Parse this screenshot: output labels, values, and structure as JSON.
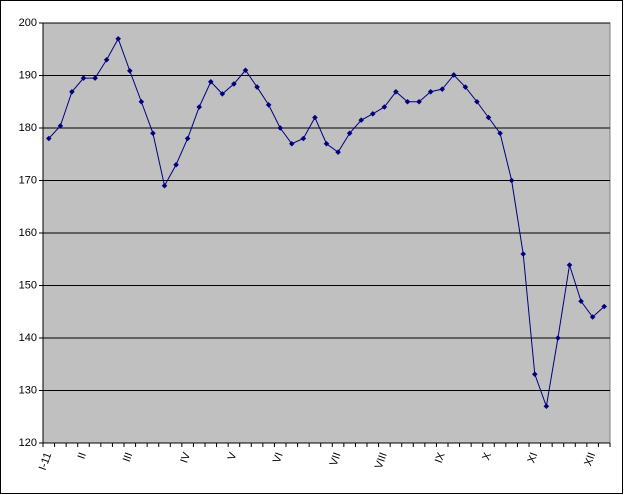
{
  "chart_data": {
    "type": "line",
    "categories": [
      "I-11",
      null,
      null,
      "II",
      null,
      null,
      null,
      "III",
      null,
      null,
      null,
      null,
      "IV",
      null,
      null,
      null,
      "V",
      null,
      null,
      null,
      "VI",
      null,
      null,
      null,
      null,
      "VII",
      null,
      null,
      null,
      "VIII",
      null,
      null,
      null,
      null,
      "IX",
      null,
      null,
      null,
      "X",
      null,
      null,
      null,
      "XI",
      null,
      null,
      null,
      null,
      "XII",
      null
    ],
    "series": [
      {
        "color": "#000080",
        "values": [
          178,
          180.4,
          186.9,
          189.5,
          189.5,
          193,
          197,
          190.9,
          185,
          179,
          169,
          173,
          178,
          184,
          188.8,
          186.5,
          188.4,
          191,
          187.8,
          184.4,
          180,
          177,
          178,
          182,
          177,
          175.4,
          179,
          181.5,
          182.7,
          184,
          186.9,
          185,
          185,
          186.9,
          187.4,
          190.1,
          187.8,
          185,
          182,
          179,
          170,
          156,
          133.1,
          127,
          140,
          153.9,
          147,
          144,
          146
        ]
      }
    ],
    "ylim": [
      120,
      200
    ],
    "yticks": [
      120,
      130,
      140,
      150,
      160,
      170,
      180,
      190,
      200
    ],
    "grid": true
  }
}
